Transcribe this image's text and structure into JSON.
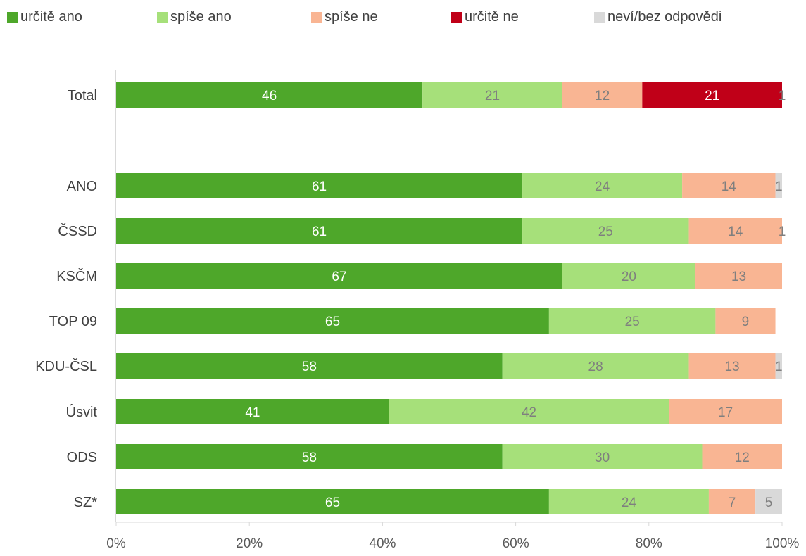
{
  "legend": [
    {
      "label": "určitě ano",
      "color": "#4ea72a"
    },
    {
      "label": "spíše ano",
      "color": "#a6e07a"
    },
    {
      "label": "spíše ne",
      "color": "#f9b593"
    },
    {
      "label": "určitě ne",
      "color": "#c00018"
    },
    {
      "label": "neví/bez odpovědi",
      "color": "#d9d9d9"
    }
  ],
  "chart_data": {
    "type": "bar",
    "orientation": "horizontal",
    "stacked": true,
    "categories": [
      "Total",
      "ANO",
      "ČSSD",
      "KSČM",
      "TOP 09",
      "KDU-ČSL",
      "Úsvit",
      "ODS",
      "SZ*"
    ],
    "series": [
      {
        "name": "určitě ano",
        "color": "#4ea72a",
        "label_color": "#ffffff",
        "values": [
          46,
          61,
          61,
          67,
          65,
          58,
          41,
          58,
          65
        ]
      },
      {
        "name": "spíše ano",
        "color": "#a6e07a",
        "label_color": "#7f7f7f",
        "values": [
          21,
          24,
          25,
          20,
          25,
          28,
          42,
          30,
          24
        ]
      },
      {
        "name": "spíše ne",
        "color": "#f9b593",
        "label_color": "#7f7f7f",
        "values": [
          12,
          14,
          14,
          13,
          9,
          13,
          17,
          12,
          7
        ]
      },
      {
        "name": "určitě ne",
        "color": "#c00018",
        "label_color": "#ffffff",
        "values": [
          21,
          0,
          0,
          0,
          0,
          0,
          0,
          0,
          0
        ]
      },
      {
        "name": "neví/bez odpovědi",
        "color": "#d9d9d9",
        "label_color": "#7f7f7f",
        "values": [
          1,
          1,
          1,
          0,
          0,
          1,
          0,
          0,
          5
        ]
      }
    ],
    "xaxis": {
      "ticks": [
        "0%",
        "20%",
        "40%",
        "60%",
        "80%",
        "100%"
      ],
      "range": [
        0,
        100
      ]
    },
    "grid": false,
    "legend_position": "top"
  }
}
